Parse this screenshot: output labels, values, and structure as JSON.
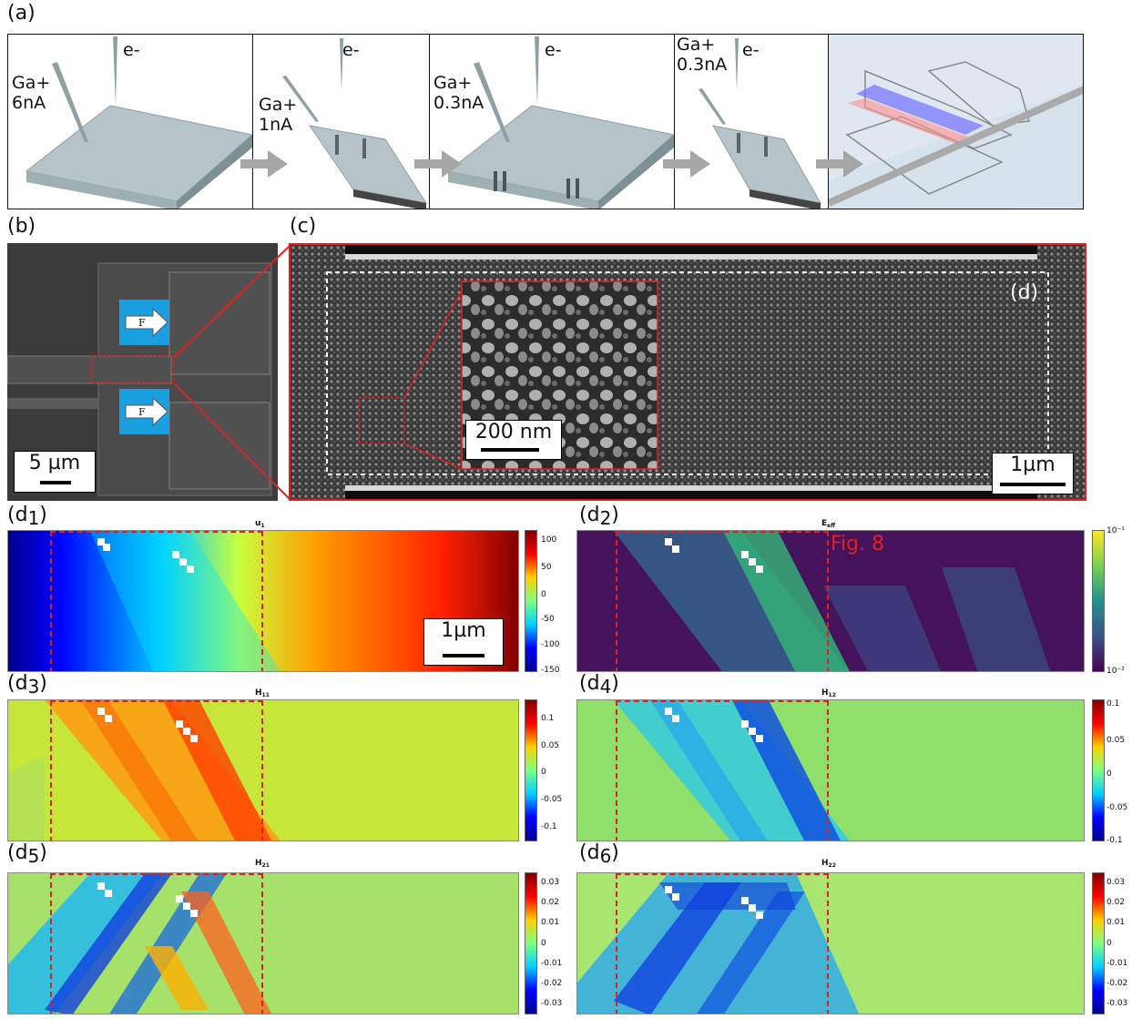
{
  "panel_a": {
    "label": "(a)",
    "steps": [
      {
        "beam": "Ga+\n6nA",
        "electron": "e-"
      },
      {
        "beam": "Ga+\n1nA",
        "electron": "e-"
      },
      {
        "beam": "Ga+\n0.3nA",
        "electron": "e-"
      },
      {
        "beam": "Ga+\n0.3nA",
        "electron": "e-"
      }
    ],
    "model_colors": {
      "top": "#7070ff",
      "bottom": "#ff9090"
    }
  },
  "panel_b": {
    "label": "(b)",
    "force_label": "F",
    "scale": "5 µm"
  },
  "panel_c": {
    "label": "(c)",
    "inset_scale": "200 nm",
    "scale": "1µm",
    "region_label": "(d)"
  },
  "maps": [
    {
      "label": "(d1)",
      "label_main": "(d",
      "label_sub": "1",
      "label_end": ")",
      "title_main": "u",
      "title_sub": "1",
      "ticks": [
        "100",
        "50",
        "0",
        "-50",
        "-100",
        "-150"
      ],
      "scale": "1µm"
    },
    {
      "label": "(d2)",
      "label_main": "(d",
      "label_sub": "2",
      "label_end": ")",
      "title_main": "E",
      "title_sub": "eff",
      "ticks": [
        "10⁻¹",
        "10⁻²"
      ],
      "callout": "Fig. 8"
    },
    {
      "label": "(d3)",
      "label_main": "(d",
      "label_sub": "3",
      "label_end": ")",
      "title_main": "H",
      "title_sub": "11",
      "ticks": [
        "0.1",
        "0.05",
        "0",
        "-0.05",
        "-0.1"
      ]
    },
    {
      "label": "(d4)",
      "label_main": "(d",
      "label_sub": "4",
      "label_end": ")",
      "title_main": "H",
      "title_sub": "12",
      "ticks": [
        "0.1",
        "0.05",
        "0",
        "-0.05",
        "-0.1"
      ]
    },
    {
      "label": "(d5)",
      "label_main": "(d",
      "label_sub": "5",
      "label_end": ")",
      "title_main": "H",
      "title_sub": "21",
      "ticks": [
        "0.03",
        "0.02",
        "0.01",
        "0",
        "-0.01",
        "-0.02",
        "-0.03"
      ]
    },
    {
      "label": "(d6)",
      "label_main": "(d",
      "label_sub": "6",
      "label_end": ")",
      "title_main": "H",
      "title_sub": "22",
      "ticks": [
        "0.03",
        "0.02",
        "0.01",
        "0",
        "-0.01",
        "-0.02",
        "-0.03"
      ]
    }
  ]
}
